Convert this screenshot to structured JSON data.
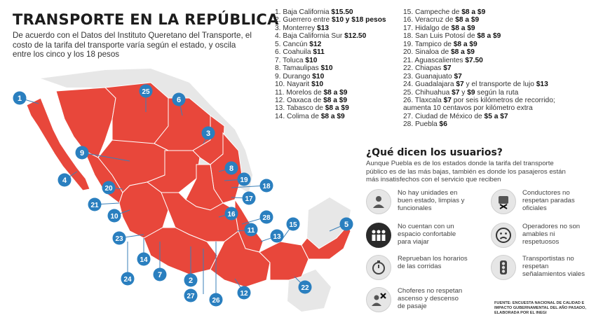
{
  "title": "TRANSPORTE EN LA REPÚBLICA",
  "subtitle": "De acuerdo con el Datos del Instituto Queretano del Transporte, el costo de la tarifa del transporte varía según el estado, y oscila entre los cinco y los 18 pesos",
  "colors": {
    "state_fill": "#e8473b",
    "state_border": "#ffffff",
    "neutral_land": "#e7e7e7",
    "marker_blue": "#2a7fbf",
    "leader_line": "#3a7fb8"
  },
  "rates_col1": [
    {
      "label": "1. Baja California ",
      "price": "$15.50"
    },
    {
      "label": "2. Guerrero entre ",
      "price": "$10 y $18 pesos"
    },
    {
      "label": "3. Monterrey ",
      "price": "$13"
    },
    {
      "label": "4. Baja California Sur ",
      "price": "$12.50"
    },
    {
      "label": "5. Cancún ",
      "price": "$12"
    },
    {
      "label": "6. Coahuila ",
      "price": "$11"
    },
    {
      "label": "7. Toluca ",
      "price": "$10"
    },
    {
      "label": "8. Tamaulipas ",
      "price": "$10"
    },
    {
      "label": "9. Durango ",
      "price": "$10"
    },
    {
      "label": "10. Nayarit ",
      "price": "$10"
    },
    {
      "label": "11. Morelos de ",
      "price": "$8 a $9"
    },
    {
      "label": "12. Oaxaca de ",
      "price": "$8 a $9"
    },
    {
      "label": "13. Tabasco de ",
      "price": "$8 a $9"
    },
    {
      "label": "14. Colima de ",
      "price": "$8 a $9"
    }
  ],
  "rates_col2": [
    {
      "label": "15. Campeche de ",
      "price": "$8 a $9",
      "rest": ""
    },
    {
      "label": "16. Veracruz de ",
      "price": "$8 a $9",
      "rest": ""
    },
    {
      "label": "17. Hidalgo de ",
      "price": "$8 a $9",
      "rest": ""
    },
    {
      "label": "18. San Luis Potosí de ",
      "price": "$8 a $9",
      "rest": ""
    },
    {
      "label": "19. Tampico de ",
      "price": "$8 a $9",
      "rest": ""
    },
    {
      "label": "20. Sinaloa de ",
      "price": "$8 a $9",
      "rest": ""
    },
    {
      "label": "21. Aguascalientes ",
      "price": "$7.50",
      "rest": ""
    },
    {
      "label": "22. Chiapas ",
      "price": "$7",
      "rest": ""
    },
    {
      "label": "23. Guanajuato ",
      "price": "$7",
      "rest": ""
    },
    {
      "label": "24. Guadalajara ",
      "price": "$7",
      "rest": " y el transporte de lujo ",
      "price2": "$13"
    },
    {
      "label": "25. Chihuahua ",
      "price": "$7",
      "rest": " y ",
      "price2": "$9",
      "rest2": " según la ruta"
    },
    {
      "label": "26. Tlaxcala ",
      "price": "$7",
      "rest": " por seis kilómetros de recorrido;"
    },
    {
      "label": "      aumenta 10 centavos por kilómetro extra",
      "price": "",
      "rest": ""
    },
    {
      "label": "27. Ciudad de México de ",
      "price": "$5 a $7",
      "rest": ""
    },
    {
      "label": "28. Puebla ",
      "price": "$6",
      "rest": ""
    }
  ],
  "users": {
    "title": "¿Qué dicen los usuarios?",
    "text": "Aunque Puebla es de los estados donde la tarifa del transporte público es de las más bajas, también es donde los pasajeros están más insatisfechos con el servicio que reciben"
  },
  "opinions": [
    {
      "icon": "bus-driver-icon",
      "text": "No hay unidades en buen estado, limpias y funcionales"
    },
    {
      "icon": "bus-stop-icon",
      "text": "Conductores no respetan paradas oficiales"
    },
    {
      "icon": "crowd-icon",
      "text": "No cuentan con un espacio confortable para viajar"
    },
    {
      "icon": "sad-face-icon",
      "text": "Operadores no son amables ni respetuosos"
    },
    {
      "icon": "stopwatch-icon",
      "text": "Reprueban los horarios de las corridas"
    },
    {
      "icon": "traffic-light-icon",
      "text": "Transportistas no respetan señalamientos viales"
    },
    {
      "icon": "driver-x-icon",
      "text": "Choferes no respetan ascenso y descenso de pasaje"
    }
  ],
  "source": "FUENTE: ENCUESTA NACIONAL DE CALIDAD E IMPACTO GUBERNAMENTAL DEL AÑO PASADO, ELABORADA POR EL INEGI",
  "markers": [
    "1",
    "2",
    "3",
    "4",
    "5",
    "6",
    "7",
    "8",
    "9",
    "10",
    "11",
    "12",
    "13",
    "14",
    "15",
    "16",
    "17",
    "18",
    "19",
    "20",
    "21",
    "22",
    "23",
    "24",
    "25",
    "26",
    "27",
    "28"
  ]
}
